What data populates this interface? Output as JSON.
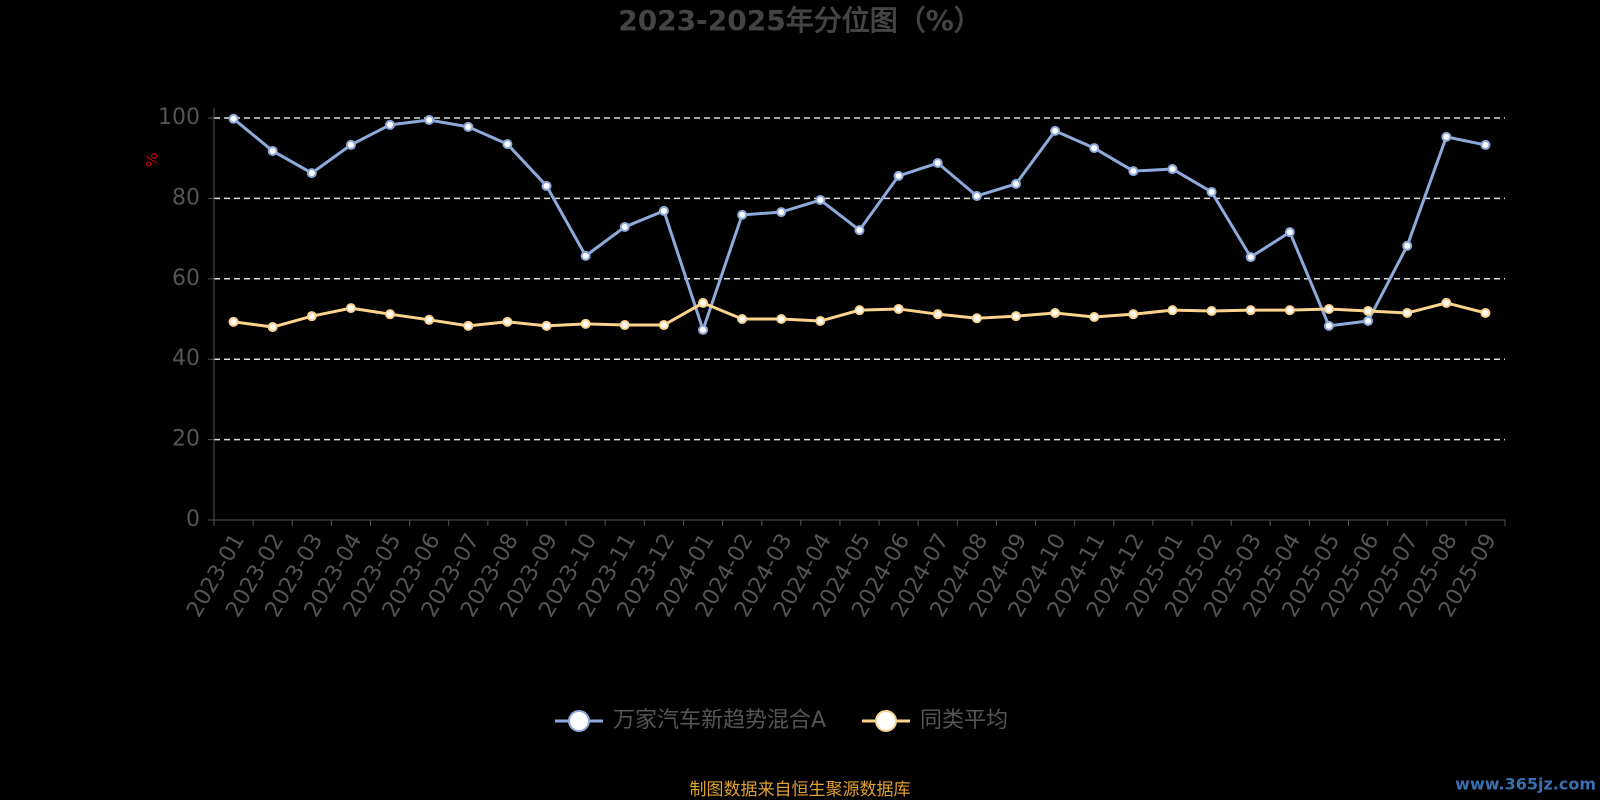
{
  "chart_data": {
    "type": "line",
    "title": "2023-2025年分位图（%）",
    "y_label": "%",
    "categories": [
      "2023-01",
      "2023-02",
      "2023-03",
      "2023-04",
      "2023-05",
      "2023-06",
      "2023-07",
      "2023-08",
      "2023-09",
      "2023-10",
      "2023-11",
      "2023-12",
      "2024-01",
      "2024-02",
      "2024-03",
      "2024-04",
      "2024-05",
      "2024-06",
      "2024-07",
      "2024-08",
      "2024-09",
      "2024-10",
      "2024-11",
      "2024-12",
      "2025-01",
      "2025-02",
      "2025-03",
      "2025-04",
      "2025-05",
      "2025-06",
      "2025-07",
      "2025-08",
      "2025-09"
    ],
    "series": [
      {
        "name": "万家汽车新趋势混合A",
        "color": "#8eaadb",
        "values": [
          99.8,
          91.8,
          86.3,
          93.3,
          98.3,
          99.5,
          97.8,
          93.5,
          83.1,
          65.7,
          72.9,
          76.9,
          47.3,
          75.9,
          76.6,
          79.6,
          72.1,
          85.6,
          88.8,
          80.6,
          83.6,
          96.8,
          92.5,
          86.8,
          87.3,
          81.6,
          65.4,
          71.6,
          48.3,
          49.5,
          68.2,
          95.3,
          93.3
        ]
      },
      {
        "name": "同类平均",
        "color": "#fbd38d",
        "values": [
          49.3,
          48.0,
          50.7,
          52.7,
          51.2,
          49.8,
          48.3,
          49.3,
          48.3,
          48.8,
          48.5,
          48.5,
          54.0,
          50.0,
          50.0,
          49.5,
          52.2,
          52.5,
          51.2,
          50.2,
          50.7,
          51.5,
          50.5,
          51.2,
          52.2,
          52.0,
          52.2,
          52.2,
          52.5,
          52.0,
          51.5,
          54.0,
          51.5
        ]
      }
    ],
    "ylim": [
      0,
      100
    ],
    "yticks": [
      0,
      20,
      40,
      60,
      80,
      100
    ],
    "grid": true,
    "source": "制图数据来自恒生聚源数据库",
    "watermark": "www.365jz.com"
  }
}
